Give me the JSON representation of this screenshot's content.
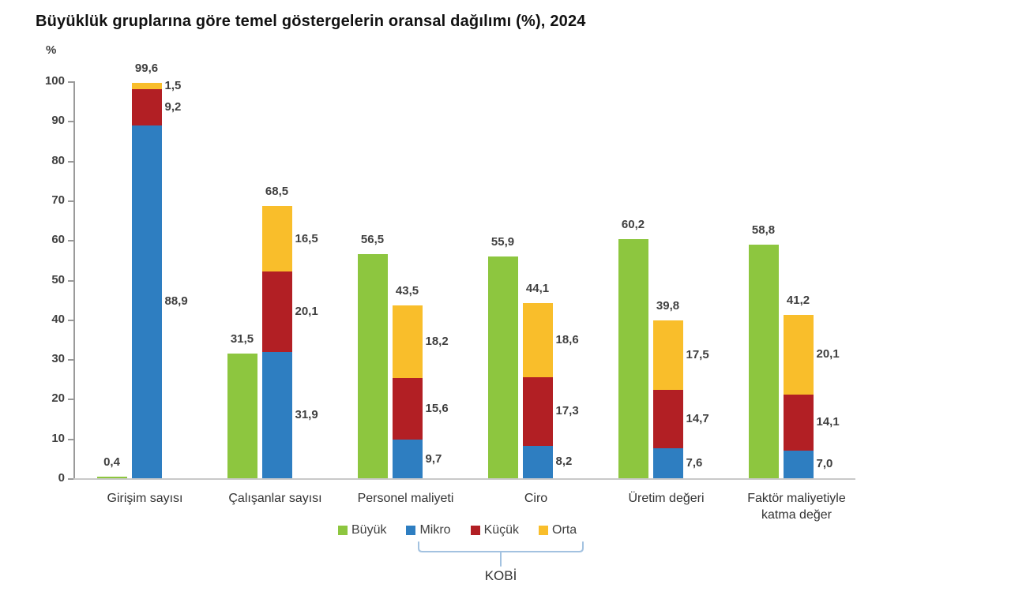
{
  "chart_data": {
    "type": "bar",
    "subtype": "grouped-with-stacked",
    "title": "Büyüklük gruplarına göre temel göstergelerin oransal dağılımı (%), 2024",
    "ylabel": "%",
    "xlabel": "",
    "ylim": [
      0,
      100
    ],
    "yticks": [
      0,
      10,
      20,
      30,
      40,
      50,
      60,
      70,
      80,
      90,
      100
    ],
    "grid": false,
    "legend_position": "bottom",
    "categories": [
      "Girişim sayısı",
      "Çalışanlar sayısı",
      "Personel maliyeti",
      "Ciro",
      "Üretim değeri",
      "Faktör maliyetiyle katma değer"
    ],
    "series": [
      {
        "name": "Büyük",
        "color": "#8DC63F",
        "stacked": false,
        "values": [
          0.4,
          31.5,
          56.5,
          55.9,
          60.2,
          58.8
        ]
      },
      {
        "name": "Mikro",
        "color": "#2E7EC1",
        "stacked": true,
        "values": [
          88.9,
          31.9,
          9.7,
          8.2,
          7.6,
          7.0
        ]
      },
      {
        "name": "Küçük",
        "color": "#B21F24",
        "stacked": true,
        "values": [
          9.2,
          20.1,
          15.6,
          17.3,
          14.7,
          14.1
        ]
      },
      {
        "name": "Orta",
        "color": "#F9BE2B",
        "stacked": true,
        "values": [
          1.5,
          16.5,
          18.2,
          18.6,
          17.5,
          20.1
        ]
      }
    ],
    "stack_totals": [
      99.6,
      68.5,
      43.5,
      44.1,
      39.8,
      41.2
    ],
    "decimal_separator": ",",
    "legend": [
      "Büyük",
      "Mikro",
      "Küçük",
      "Orta"
    ],
    "kobi_label": "KOBİ",
    "kobi_bracket_color": "#A3C2E0"
  }
}
